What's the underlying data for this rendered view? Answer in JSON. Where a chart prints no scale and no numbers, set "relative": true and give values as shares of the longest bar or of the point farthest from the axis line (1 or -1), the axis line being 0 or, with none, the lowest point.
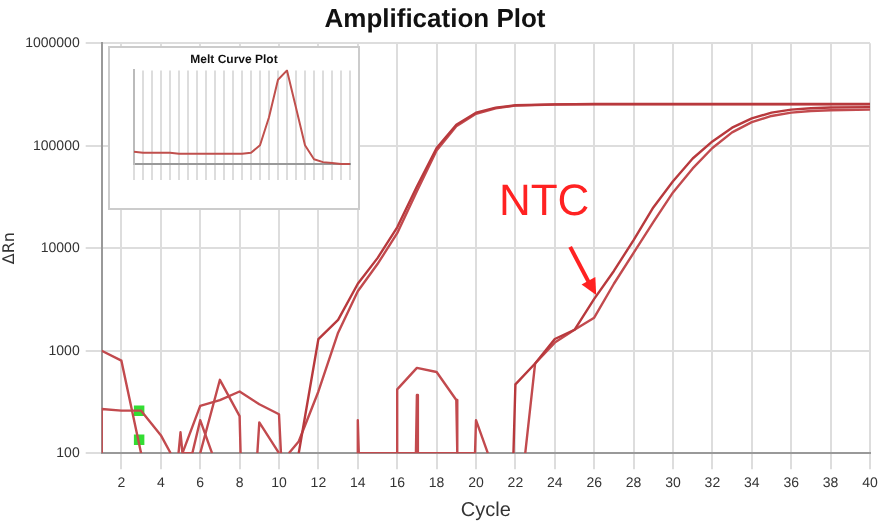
{
  "chart_data": [
    {
      "type": "line",
      "title": "Amplification Plot",
      "xlabel": "Cycle",
      "ylabel": "ΔRn",
      "log": "y",
      "grid": true,
      "marker": "none",
      "xlim": [
        1,
        40
      ],
      "ylim": [
        100,
        1000000
      ],
      "xticks": [
        2,
        4,
        6,
        8,
        10,
        12,
        14,
        16,
        18,
        20,
        22,
        24,
        26,
        28,
        30,
        32,
        34,
        36,
        38,
        40
      ],
      "yticks": [
        100,
        1000,
        10000,
        100000,
        1000000
      ],
      "annotations": [
        {
          "text": "NTC",
          "x": 26.1,
          "y": 3500
        }
      ],
      "series": [
        {
          "color": "#b8393d",
          "x": [
            11,
            12,
            13,
            14,
            15,
            16,
            17,
            18,
            19,
            20,
            21,
            22,
            24,
            26,
            28,
            30,
            32,
            34,
            36,
            38,
            40
          ],
          "values": [
            100,
            1300,
            2000,
            4500,
            8000,
            16000,
            40000,
            95000,
            160000,
            210000,
            235000,
            248000,
            253000,
            255000,
            255000,
            255000,
            255000,
            255000,
            255000,
            255000,
            255000
          ]
        },
        {
          "color": "#c24a4e",
          "x": [
            10.5,
            11,
            12,
            13,
            14,
            15,
            16,
            17,
            18,
            19,
            20,
            21,
            22,
            24,
            26,
            28,
            30,
            32,
            34,
            36,
            38,
            40
          ],
          "values": [
            100,
            130,
            400,
            1500,
            3800,
            7000,
            14000,
            36000,
            90000,
            155000,
            205000,
            232000,
            246000,
            252000,
            254000,
            254000,
            254000,
            254000,
            254000,
            254000,
            254000,
            254000
          ]
        },
        {
          "color": "#b8393d",
          "x": [
            21.9,
            22,
            23,
            24,
            25,
            26,
            27,
            28,
            29,
            30,
            31,
            32,
            33,
            34,
            35,
            36,
            37,
            38,
            40
          ],
          "values": [
            100,
            470,
            750,
            1300,
            1600,
            3200,
            6000,
            12000,
            25000,
            45000,
            75000,
            110000,
            150000,
            185000,
            210000,
            225000,
            232000,
            236000,
            238000
          ]
        },
        {
          "color": "#c24a4e",
          "x": [
            22.5,
            23,
            24,
            25,
            26,
            27,
            28,
            29,
            30,
            31,
            32,
            33,
            34,
            35,
            36,
            37,
            38,
            40
          ],
          "values": [
            100,
            750,
            1200,
            1600,
            2100,
            4500,
            9000,
            18000,
            35000,
            60000,
            95000,
            135000,
            170000,
            195000,
            210000,
            218000,
            222000,
            225000
          ]
        },
        {
          "color": "#c24a4e",
          "x": [
            1,
            2,
            3,
            3.01
          ],
          "values": [
            1000,
            800,
            100,
            100
          ]
        },
        {
          "color": "#c24a4e",
          "x": [
            1,
            1,
            2,
            3,
            4,
            4.5
          ],
          "values": [
            100,
            270,
            260,
            260,
            150,
            100
          ]
        },
        {
          "color": "#c24a4e",
          "x": [
            5.1,
            6,
            7,
            8,
            9,
            10,
            10.1
          ],
          "values": [
            100,
            290,
            330,
            400,
            300,
            240,
            100
          ]
        },
        {
          "color": "#c24a4e",
          "x": [
            6,
            7,
            8,
            8.05
          ],
          "values": [
            100,
            520,
            230,
            100
          ]
        },
        {
          "color": "#c24a4e",
          "x": [
            16,
            16,
            17,
            18,
            19,
            19.05
          ],
          "values": [
            100,
            420,
            680,
            620,
            330,
            100
          ]
        },
        {
          "color": "#c24a4e",
          "x": [
            4.9,
            5,
            5.1,
            5.6,
            6,
            6.6
          ],
          "values": [
            100,
            160,
            100,
            100,
            210,
            100
          ]
        },
        {
          "color": "#c24a4e",
          "x": [
            8.9,
            9,
            10,
            10.05
          ],
          "values": [
            100,
            200,
            100,
            100
          ]
        },
        {
          "color": "#c24a4e",
          "x": [
            13.95,
            14,
            14.05,
            16.95,
            17,
            17.05,
            19.95,
            20,
            20.6
          ],
          "values": [
            100,
            210,
            100,
            100,
            370,
            100,
            100,
            210,
            100
          ]
        },
        {
          "type": "scatter",
          "marker": "square",
          "color": "#33dd33",
          "x": [
            2.9,
            2.9
          ],
          "values": [
            260,
            135
          ]
        }
      ]
    },
    {
      "type": "line",
      "title": "Melt Curve Plot",
      "relative": true,
      "grid": "x",
      "marker": "none",
      "categories": [
        null,
        null,
        null,
        null,
        null,
        null,
        null,
        null,
        null,
        null,
        null,
        null,
        null,
        null,
        null,
        null,
        null,
        null,
        null,
        null,
        null,
        null,
        null,
        null,
        null
      ],
      "series": [
        {
          "color": "#c0504d",
          "values": [
            0.13,
            0.12,
            0.12,
            0.12,
            0.12,
            0.11,
            0.11,
            0.11,
            0.11,
            0.11,
            0.11,
            0.11,
            0.11,
            0.12,
            0.2,
            0.5,
            0.9,
            1,
            0.6,
            0.2,
            0.05,
            0.02,
            0.01,
            0,
            0
          ]
        }
      ]
    }
  ]
}
